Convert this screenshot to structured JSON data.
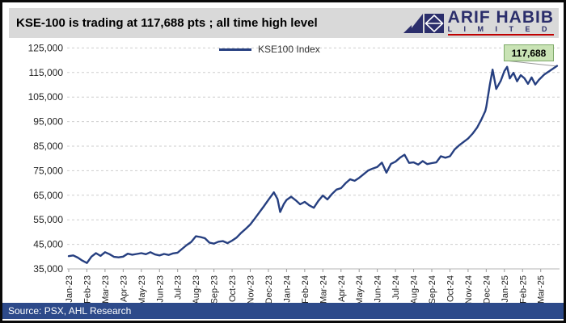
{
  "header": {
    "title": "KSE-100 is trading at 117,688 pts ; all time high level",
    "logo_name": "ARIF HABIB",
    "logo_sub": "L I M I T E D"
  },
  "legend": {
    "label": "KSE100 Index"
  },
  "annotation": {
    "value": "117,688"
  },
  "footer": {
    "source": "Source: PSX, AHL Research"
  },
  "colors": {
    "line_navy": "#263f80",
    "grid_gray": "#cdcdcd",
    "axis_gray": "#b5b5b5",
    "header_gray": "#d9d9d9",
    "annotation_fill": "#c9e3b5",
    "annotation_border": "#7da968",
    "footer_navy": "#2d4a8a",
    "logo_navy": "#2b2e6b",
    "logo_red": "#c00000"
  },
  "chart_data": {
    "type": "line",
    "title": "KSE-100 is trading at 117,688 pts ; all time high level",
    "xlabel": "",
    "ylabel": "",
    "legend_position": "top-center",
    "grid": "horizontal-dashed",
    "ylim": [
      35000,
      127000
    ],
    "y_ticks": [
      125000,
      115000,
      105000,
      95000,
      85000,
      75000,
      65000,
      55000,
      45000,
      35000
    ],
    "categories": [
      "Jan-23",
      "Feb-23",
      "Mar-23",
      "Apr-23",
      "May-23",
      "Jun-23",
      "Jul-23",
      "Aug-23",
      "Sep-23",
      "Oct-23",
      "Nov-23",
      "Dec-23",
      "Jan-24",
      "Feb-24",
      "Mar-24",
      "Apr-24",
      "May-24",
      "Jun-24",
      "Jul-24",
      "Aug-24",
      "Sep-24",
      "Oct-24",
      "Nov-24",
      "Dec-24",
      "Jan-25",
      "Feb-25",
      "Mar-25"
    ],
    "last_point_label": "117,688",
    "series": [
      {
        "name": "KSE100 Index",
        "color": "#263f80",
        "points": [
          [
            0,
            40200
          ],
          [
            0.25,
            40500
          ],
          [
            0.5,
            39600
          ],
          [
            0.75,
            38400
          ],
          [
            1,
            37400
          ],
          [
            1.25,
            40000
          ],
          [
            1.5,
            41400
          ],
          [
            1.75,
            40300
          ],
          [
            2,
            41800
          ],
          [
            2.25,
            41000
          ],
          [
            2.5,
            39900
          ],
          [
            2.75,
            39700
          ],
          [
            3,
            40000
          ],
          [
            3.25,
            41200
          ],
          [
            3.5,
            40800
          ],
          [
            3.75,
            41100
          ],
          [
            4,
            41400
          ],
          [
            4.25,
            41000
          ],
          [
            4.5,
            41800
          ],
          [
            4.75,
            40900
          ],
          [
            5,
            40500
          ],
          [
            5.25,
            41100
          ],
          [
            5.5,
            40700
          ],
          [
            5.75,
            41300
          ],
          [
            6,
            41600
          ],
          [
            6.25,
            43200
          ],
          [
            6.5,
            44700
          ],
          [
            6.75,
            46000
          ],
          [
            7,
            48300
          ],
          [
            7.25,
            48000
          ],
          [
            7.5,
            47500
          ],
          [
            7.75,
            45700
          ],
          [
            8,
            45300
          ],
          [
            8.25,
            46100
          ],
          [
            8.5,
            46300
          ],
          [
            8.75,
            45500
          ],
          [
            9,
            46500
          ],
          [
            9.25,
            47800
          ],
          [
            9.5,
            49700
          ],
          [
            9.75,
            51300
          ],
          [
            10,
            53100
          ],
          [
            10.25,
            55500
          ],
          [
            10.5,
            58000
          ],
          [
            10.75,
            60500
          ],
          [
            11,
            63100
          ],
          [
            11.3,
            66200
          ],
          [
            11.5,
            63500
          ],
          [
            11.65,
            58200
          ],
          [
            11.85,
            61400
          ],
          [
            12,
            63100
          ],
          [
            12.25,
            64400
          ],
          [
            12.5,
            63000
          ],
          [
            12.75,
            61300
          ],
          [
            13,
            62300
          ],
          [
            13.25,
            60900
          ],
          [
            13.5,
            59900
          ],
          [
            13.75,
            62700
          ],
          [
            14,
            64900
          ],
          [
            14.25,
            63300
          ],
          [
            14.5,
            65500
          ],
          [
            14.75,
            67300
          ],
          [
            15,
            67900
          ],
          [
            15.25,
            69900
          ],
          [
            15.5,
            71500
          ],
          [
            15.75,
            70900
          ],
          [
            16,
            72100
          ],
          [
            16.25,
            73600
          ],
          [
            16.5,
            75100
          ],
          [
            16.75,
            75900
          ],
          [
            17,
            76500
          ],
          [
            17.25,
            78300
          ],
          [
            17.5,
            74200
          ],
          [
            17.75,
            77800
          ],
          [
            18,
            78700
          ],
          [
            18.25,
            80300
          ],
          [
            18.5,
            81500
          ],
          [
            18.75,
            78200
          ],
          [
            19,
            78400
          ],
          [
            19.25,
            77500
          ],
          [
            19.5,
            78900
          ],
          [
            19.75,
            77700
          ],
          [
            20,
            78100
          ],
          [
            20.25,
            78400
          ],
          [
            20.5,
            80900
          ],
          [
            20.75,
            80300
          ],
          [
            21,
            80900
          ],
          [
            21.25,
            83600
          ],
          [
            21.5,
            85300
          ],
          [
            21.75,
            86700
          ],
          [
            22,
            88100
          ],
          [
            22.25,
            90100
          ],
          [
            22.5,
            92600
          ],
          [
            22.75,
            96100
          ],
          [
            22.95,
            99300
          ],
          [
            23,
            101000
          ],
          [
            23.2,
            110000
          ],
          [
            23.35,
            116200
          ],
          [
            23.55,
            108300
          ],
          [
            23.8,
            111600
          ],
          [
            24,
            115600
          ],
          [
            24.15,
            117300
          ],
          [
            24.3,
            112600
          ],
          [
            24.5,
            114900
          ],
          [
            24.7,
            111400
          ],
          [
            24.9,
            113900
          ],
          [
            25.1,
            112700
          ],
          [
            25.3,
            110400
          ],
          [
            25.5,
            113000
          ],
          [
            25.7,
            110100
          ],
          [
            25.9,
            112000
          ],
          [
            26.2,
            114200
          ],
          [
            26.5,
            115700
          ],
          [
            26.9,
            117688
          ]
        ]
      }
    ]
  }
}
